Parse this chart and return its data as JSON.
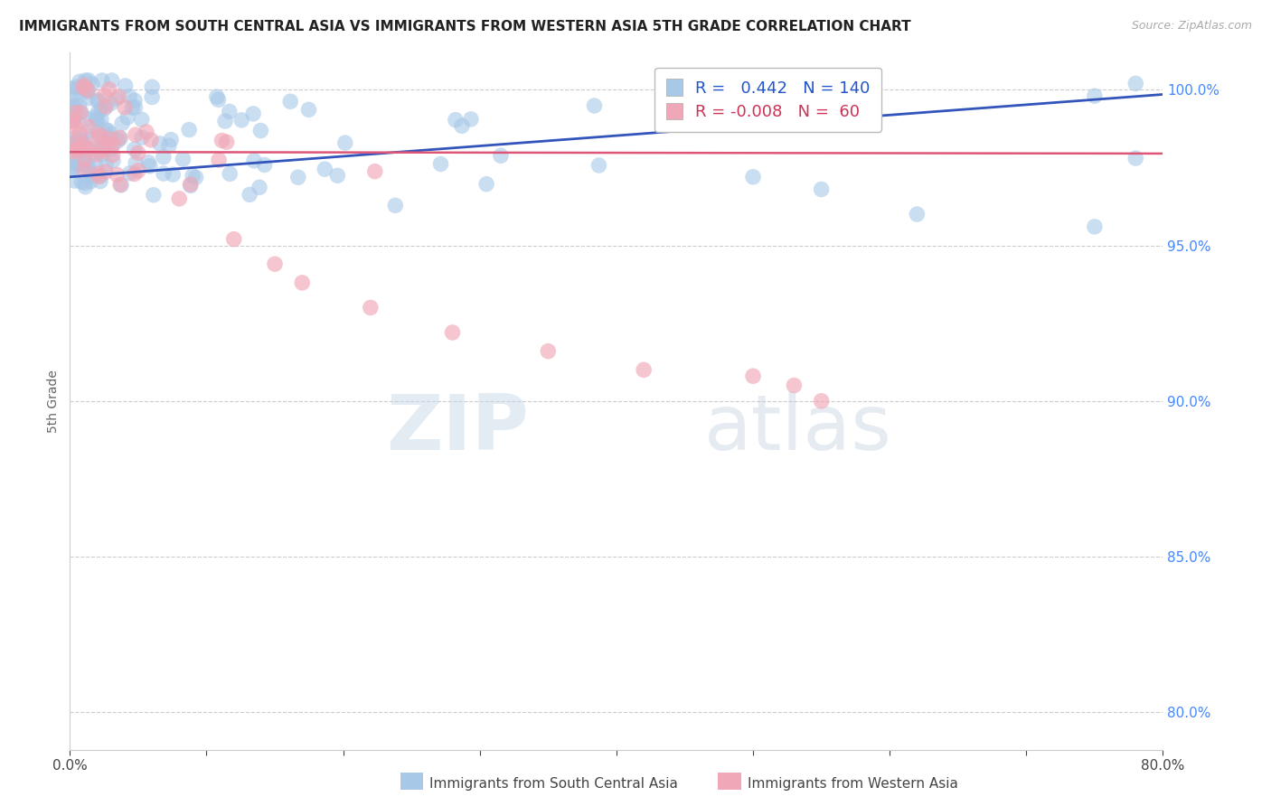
{
  "title": "IMMIGRANTS FROM SOUTH CENTRAL ASIA VS IMMIGRANTS FROM WESTERN ASIA 5TH GRADE CORRELATION CHART",
  "source": "Source: ZipAtlas.com",
  "ylabel": "5th Grade",
  "xlim": [
    0.0,
    0.8
  ],
  "ylim": [
    0.788,
    1.012
  ],
  "xticks": [
    0.0,
    0.1,
    0.2,
    0.3,
    0.4,
    0.5,
    0.6,
    0.7,
    0.8
  ],
  "xticklabels": [
    "0.0%",
    "",
    "",
    "",
    "",
    "",
    "",
    "",
    "80.0%"
  ],
  "ytick_positions": [
    0.8,
    0.85,
    0.9,
    0.95,
    1.0
  ],
  "yticklabels": [
    "80.0%",
    "85.0%",
    "90.0%",
    "95.0%",
    "100.0%"
  ],
  "blue_R": 0.442,
  "blue_N": 140,
  "pink_R": -0.008,
  "pink_N": 60,
  "blue_color": "#a8c8e8",
  "pink_color": "#f0a8b8",
  "blue_line_color": "#3355bb",
  "pink_line_color": "#dd5577",
  "legend_label_blue": "Immigrants from South Central Asia",
  "legend_label_pink": "Immigrants from Western Asia",
  "watermark_zip": "ZIP",
  "watermark_atlas": "atlas",
  "blue_line_x": [
    0.0,
    0.8
  ],
  "blue_line_y": [
    0.972,
    0.9985
  ],
  "pink_line_x": [
    0.0,
    0.8
  ],
  "pink_line_y": [
    0.98,
    0.9795
  ]
}
